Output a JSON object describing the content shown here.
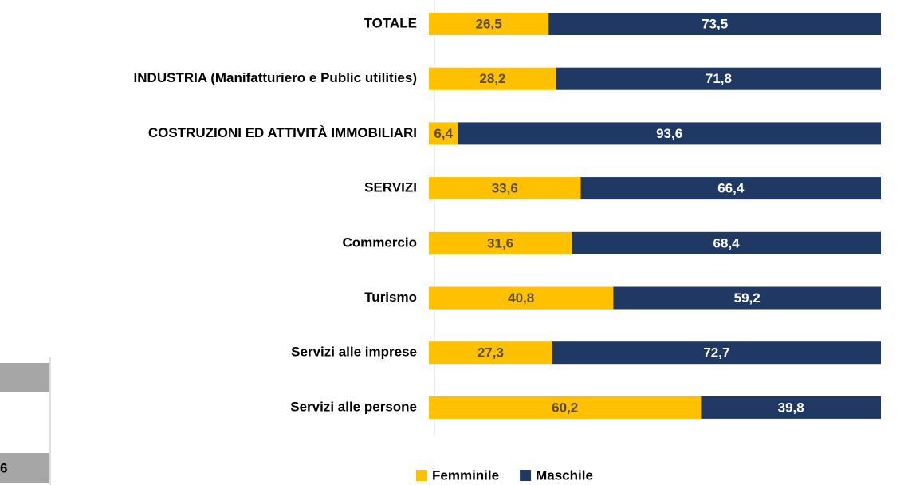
{
  "chart_data": {
    "type": "stacked-barh",
    "categories": [
      "TOTALE",
      "INDUSTRIA (Manifatturiero e Public utilities)",
      "COSTRUZIONI ED ATTIVITÀ IMMOBILIARI",
      "SERVIZI",
      "Commercio",
      "Turismo",
      "Servizi alle imprese",
      "Servizi alle persone"
    ],
    "series": [
      {
        "name": "Femminile",
        "color": "#FFC000",
        "values": [
          26.5,
          28.2,
          6.4,
          33.6,
          31.6,
          40.8,
          27.3,
          60.2
        ],
        "value_labels": [
          "26,5",
          "28,2",
          "6,4",
          "33,6",
          "31,6",
          "40,8",
          "27,3",
          "60,2"
        ]
      },
      {
        "name": "Maschile",
        "color": "#1F3864",
        "values": [
          73.5,
          71.8,
          93.6,
          66.4,
          68.4,
          59.2,
          72.7,
          39.8
        ],
        "value_labels": [
          "73,5",
          "71,8",
          "93,6",
          "66,4",
          "68,4",
          "59,2",
          "72,7",
          "39,8"
        ]
      }
    ],
    "xlim": [
      0,
      100
    ],
    "legend": "bottom"
  },
  "fragment": {
    "label": "6"
  }
}
